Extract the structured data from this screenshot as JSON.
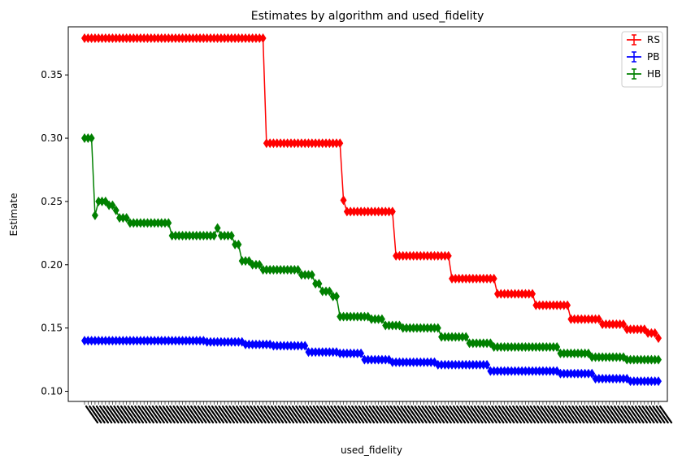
{
  "chart_data": {
    "type": "line",
    "title": "Estimates by algorithm and used_fidelity",
    "xlabel": "used_fidelity",
    "ylabel": "Estimate",
    "ylim": [
      0.092,
      0.388
    ],
    "yticks": [
      0.1,
      0.15,
      0.2,
      0.25,
      0.3,
      0.35
    ],
    "ytick_labels": [
      "0.10",
      "0.15",
      "0.20",
      "0.25",
      "0.30",
      "0.35"
    ],
    "n_points": 165,
    "xtick_labels_note": "165 rotated x tick labels, too dense to read",
    "legend_position": "top-right",
    "grid": false,
    "series": [
      {
        "name": "RS",
        "color": "#ff0000",
        "segments": [
          {
            "from": 0,
            "to": 51,
            "value": 0.379
          },
          {
            "from": 52,
            "to": 73,
            "value": 0.296
          },
          {
            "from": 74,
            "to": 74,
            "value": 0.251
          },
          {
            "from": 75,
            "to": 88,
            "value": 0.242
          },
          {
            "from": 89,
            "to": 104,
            "value": 0.207
          },
          {
            "from": 105,
            "to": 117,
            "value": 0.189
          },
          {
            "from": 118,
            "to": 128,
            "value": 0.177
          },
          {
            "from": 129,
            "to": 138,
            "value": 0.168
          },
          {
            "from": 139,
            "to": 147,
            "value": 0.157
          },
          {
            "from": 148,
            "to": 154,
            "value": 0.153
          },
          {
            "from": 155,
            "to": 160,
            "value": 0.149
          },
          {
            "from": 161,
            "to": 163,
            "value": 0.146
          },
          {
            "from": 164,
            "to": 164,
            "value": 0.142
          }
        ]
      },
      {
        "name": "PB",
        "color": "#0000ff",
        "segments": [
          {
            "from": 0,
            "to": 34,
            "value": 0.14
          },
          {
            "from": 35,
            "to": 45,
            "value": 0.139
          },
          {
            "from": 46,
            "to": 53,
            "value": 0.137
          },
          {
            "from": 54,
            "to": 63,
            "value": 0.136
          },
          {
            "from": 64,
            "to": 72,
            "value": 0.131
          },
          {
            "from": 73,
            "to": 79,
            "value": 0.13
          },
          {
            "from": 80,
            "to": 87,
            "value": 0.125
          },
          {
            "from": 88,
            "to": 100,
            "value": 0.123
          },
          {
            "from": 101,
            "to": 115,
            "value": 0.121
          },
          {
            "from": 116,
            "to": 135,
            "value": 0.116
          },
          {
            "from": 136,
            "to": 145,
            "value": 0.114
          },
          {
            "from": 146,
            "to": 155,
            "value": 0.11
          },
          {
            "from": 156,
            "to": 164,
            "value": 0.108
          }
        ]
      },
      {
        "name": "HB",
        "color": "#008000",
        "segments": [
          {
            "from": 0,
            "to": 2,
            "value": 0.3
          },
          {
            "from": 3,
            "to": 3,
            "value": 0.239
          },
          {
            "from": 4,
            "to": 6,
            "value": 0.25
          },
          {
            "from": 7,
            "to": 8,
            "value": 0.247
          },
          {
            "from": 9,
            "to": 9,
            "value": 0.243
          },
          {
            "from": 10,
            "to": 12,
            "value": 0.237
          },
          {
            "from": 13,
            "to": 24,
            "value": 0.233
          },
          {
            "from": 25,
            "to": 37,
            "value": 0.223
          },
          {
            "from": 38,
            "to": 38,
            "value": 0.229
          },
          {
            "from": 39,
            "to": 42,
            "value": 0.223
          },
          {
            "from": 43,
            "to": 44,
            "value": 0.216
          },
          {
            "from": 45,
            "to": 47,
            "value": 0.203
          },
          {
            "from": 48,
            "to": 50,
            "value": 0.2
          },
          {
            "from": 51,
            "to": 61,
            "value": 0.196
          },
          {
            "from": 62,
            "to": 65,
            "value": 0.192
          },
          {
            "from": 66,
            "to": 67,
            "value": 0.185
          },
          {
            "from": 68,
            "to": 70,
            "value": 0.179
          },
          {
            "from": 71,
            "to": 72,
            "value": 0.175
          },
          {
            "from": 73,
            "to": 81,
            "value": 0.159
          },
          {
            "from": 82,
            "to": 85,
            "value": 0.157
          },
          {
            "from": 86,
            "to": 90,
            "value": 0.152
          },
          {
            "from": 91,
            "to": 101,
            "value": 0.15
          },
          {
            "from": 102,
            "to": 109,
            "value": 0.143
          },
          {
            "from": 110,
            "to": 116,
            "value": 0.138
          },
          {
            "from": 117,
            "to": 135,
            "value": 0.135
          },
          {
            "from": 136,
            "to": 144,
            "value": 0.13
          },
          {
            "from": 145,
            "to": 154,
            "value": 0.127
          },
          {
            "from": 155,
            "to": 164,
            "value": 0.125
          }
        ]
      }
    ]
  }
}
